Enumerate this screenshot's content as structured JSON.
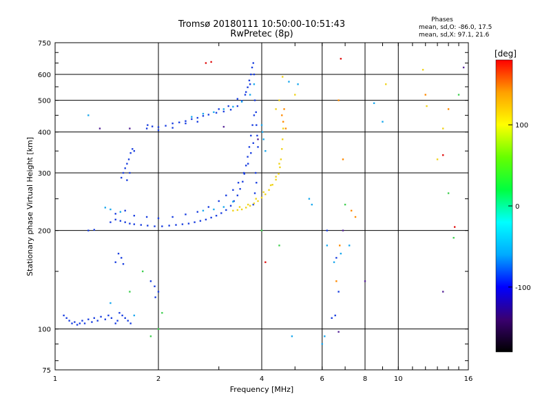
{
  "chart_data": {
    "type": "scatter",
    "title": "Tromsø 20180111 10:50:00-10:51:43",
    "subtitle": "RwPretec (8p)",
    "stats": {
      "heading": "Phases",
      "line1": "mean, sd,O: -86.0, 17.5",
      "line2": "mean, sd,X:  97.1, 21.6"
    },
    "xlabel": "Frequency [MHz]",
    "ylabel": "Stationary phase Virtual Height [km]",
    "xscale": "log",
    "yscale": "log",
    "xlim": [
      1,
      16
    ],
    "ylim": [
      75,
      750
    ],
    "x_ticks": [
      1,
      2,
      4,
      6,
      8,
      10,
      16
    ],
    "y_ticks": [
      75,
      100,
      200,
      300,
      400,
      500,
      600,
      750
    ],
    "x_grid": [
      2,
      4,
      6,
      8,
      10
    ],
    "y_grid": [
      100,
      200,
      300,
      400,
      500,
      600
    ],
    "grid": true,
    "colorbar": {
      "label": "[deg]",
      "range": [
        -180,
        180
      ],
      "ticks": [
        100,
        0,
        -100
      ],
      "colors": [
        "#000000",
        "#3a0070",
        "#0000ff",
        "#00aaff",
        "#00ffff",
        "#00ff40",
        "#66ff00",
        "#ffff00",
        "#ffa000",
        "#ff0000"
      ]
    },
    "series": [
      {
        "color": "#1a3fe0",
        "points": [
          [
            1.06,
            110
          ],
          [
            1.08,
            108
          ],
          [
            1.1,
            106
          ],
          [
            1.12,
            104
          ],
          [
            1.14,
            105
          ],
          [
            1.16,
            103
          ],
          [
            1.18,
            104
          ],
          [
            1.2,
            106
          ],
          [
            1.22,
            104
          ],
          [
            1.25,
            107
          ],
          [
            1.28,
            105
          ],
          [
            1.3,
            108
          ],
          [
            1.33,
            106
          ],
          [
            1.36,
            109
          ],
          [
            1.4,
            107
          ],
          [
            1.43,
            110
          ],
          [
            1.46,
            108
          ],
          [
            1.5,
            104
          ],
          [
            1.52,
            106
          ],
          [
            1.54,
            112
          ],
          [
            1.57,
            110
          ],
          [
            1.6,
            108
          ],
          [
            1.63,
            106
          ],
          [
            1.66,
            104
          ],
          [
            1.56,
            290
          ],
          [
            1.58,
            300
          ],
          [
            1.6,
            310
          ],
          [
            1.62,
            320
          ],
          [
            1.64,
            330
          ],
          [
            1.66,
            345
          ],
          [
            1.68,
            355
          ],
          [
            1.7,
            350
          ],
          [
            1.62,
            285
          ],
          [
            1.65,
            300
          ],
          [
            1.5,
            160
          ],
          [
            1.53,
            170
          ],
          [
            1.56,
            165
          ],
          [
            1.58,
            158
          ],
          [
            1.25,
            200
          ],
          [
            1.3,
            201
          ],
          [
            1.45,
            212
          ],
          [
            1.5,
            216
          ],
          [
            1.55,
            214
          ],
          [
            1.6,
            212
          ],
          [
            1.65,
            210
          ],
          [
            1.7,
            209
          ],
          [
            1.78,
            208
          ],
          [
            1.86,
            207
          ],
          [
            1.95,
            206
          ],
          [
            2.05,
            206
          ],
          [
            2.15,
            207
          ],
          [
            2.25,
            208
          ],
          [
            2.35,
            209
          ],
          [
            2.45,
            210
          ],
          [
            2.55,
            212
          ],
          [
            2.65,
            214
          ],
          [
            2.75,
            216
          ],
          [
            2.85,
            219
          ],
          [
            2.95,
            222
          ],
          [
            3.05,
            226
          ],
          [
            3.15,
            231
          ],
          [
            3.25,
            238
          ],
          [
            3.32,
            246
          ],
          [
            3.4,
            256
          ],
          [
            3.46,
            268
          ],
          [
            3.52,
            282
          ],
          [
            3.56,
            298
          ],
          [
            3.6,
            316
          ],
          [
            3.64,
            336
          ],
          [
            3.68,
            360
          ],
          [
            3.72,
            390
          ],
          [
            3.76,
            420
          ],
          [
            3.8,
            450
          ],
          [
            1.5,
            225
          ],
          [
            1.6,
            230
          ],
          [
            1.7,
            222
          ],
          [
            1.85,
            220
          ],
          [
            2.0,
            218
          ],
          [
            2.2,
            220
          ],
          [
            2.4,
            224
          ],
          [
            2.6,
            228
          ],
          [
            2.8,
            236
          ],
          [
            3.0,
            246
          ],
          [
            3.15,
            256
          ],
          [
            3.3,
            266
          ],
          [
            3.42,
            280
          ],
          [
            3.55,
            300
          ],
          [
            3.65,
            320
          ],
          [
            3.72,
            345
          ],
          [
            3.78,
            370
          ],
          [
            1.86,
            420
          ],
          [
            1.92,
            416
          ],
          [
            2.0,
            414
          ],
          [
            2.1,
            418
          ],
          [
            2.2,
            425
          ],
          [
            2.3,
            428
          ],
          [
            2.4,
            432
          ],
          [
            2.5,
            438
          ],
          [
            2.6,
            442
          ],
          [
            2.7,
            448
          ],
          [
            2.8,
            452
          ],
          [
            2.95,
            458
          ],
          [
            3.1,
            462
          ],
          [
            3.25,
            468
          ],
          [
            3.4,
            480
          ],
          [
            3.5,
            498
          ],
          [
            3.58,
            520
          ],
          [
            3.64,
            548
          ],
          [
            3.68,
            575
          ],
          [
            3.72,
            600
          ],
          [
            3.75,
            630
          ],
          [
            3.78,
            650
          ],
          [
            3.0,
            470
          ],
          [
            3.2,
            480
          ],
          [
            3.4,
            505
          ],
          [
            3.6,
            530
          ],
          [
            3.7,
            560
          ],
          [
            3.8,
            600
          ],
          [
            3.82,
            500
          ],
          [
            3.85,
            460
          ],
          [
            3.86,
            420
          ],
          [
            3.88,
            390
          ],
          [
            3.9,
            360
          ],
          [
            1.85,
            410
          ],
          [
            2.0,
            405
          ],
          [
            2.2,
            412
          ],
          [
            2.4,
            425
          ],
          [
            2.6,
            430
          ],
          [
            3.84,
            300
          ],
          [
            3.86,
            280
          ],
          [
            3.82,
            260
          ],
          [
            3.78,
            240
          ],
          [
            1.9,
            140
          ],
          [
            1.95,
            135
          ],
          [
            2.0,
            130
          ],
          [
            1.96,
            125
          ],
          [
            6.2,
            200
          ],
          [
            6.6,
            165
          ],
          [
            6.7,
            130
          ],
          [
            6.55,
            110
          ],
          [
            6.4,
            108
          ]
        ]
      },
      {
        "color": "#19a8ee",
        "points": [
          [
            2.5,
            445
          ],
          [
            2.7,
            455
          ],
          [
            2.9,
            460
          ],
          [
            3.1,
            470
          ],
          [
            3.3,
            478
          ],
          [
            3.5,
            495
          ],
          [
            3.7,
            520
          ],
          [
            3.8,
            560
          ],
          [
            1.4,
            235
          ],
          [
            1.45,
            232
          ],
          [
            1.55,
            228
          ],
          [
            2.7,
            230
          ],
          [
            2.9,
            232
          ],
          [
            3.1,
            236
          ],
          [
            3.3,
            245
          ],
          [
            4.0,
            420
          ],
          [
            4.05,
            380
          ],
          [
            4.1,
            350
          ],
          [
            4.02,
            400
          ],
          [
            1.25,
            450
          ],
          [
            1.45,
            120
          ],
          [
            1.7,
            110
          ],
          [
            6.0,
            90
          ],
          [
            6.1,
            95
          ],
          [
            6.2,
            180
          ],
          [
            6.5,
            160
          ],
          [
            6.8,
            170
          ],
          [
            7.2,
            180
          ],
          [
            8.5,
            490
          ],
          [
            9.0,
            430
          ],
          [
            4.8,
            570
          ],
          [
            5.1,
            560
          ],
          [
            5.5,
            250
          ],
          [
            5.6,
            240
          ],
          [
            4.9,
            95
          ]
        ]
      },
      {
        "color": "#f0d31a",
        "points": [
          [
            3.3,
            230
          ],
          [
            3.4,
            231
          ],
          [
            3.5,
            232
          ],
          [
            3.6,
            235
          ],
          [
            3.7,
            238
          ],
          [
            3.8,
            242
          ],
          [
            3.9,
            246
          ],
          [
            4.0,
            252
          ],
          [
            4.1,
            258
          ],
          [
            4.2,
            266
          ],
          [
            4.3,
            276
          ],
          [
            4.4,
            286
          ],
          [
            4.48,
            298
          ],
          [
            4.52,
            312
          ],
          [
            4.55,
            330
          ],
          [
            4.58,
            355
          ],
          [
            4.6,
            380
          ],
          [
            4.62,
            410
          ],
          [
            3.45,
            236
          ],
          [
            3.65,
            240
          ],
          [
            3.85,
            250
          ],
          [
            4.05,
            262
          ],
          [
            4.25,
            275
          ],
          [
            4.4,
            292
          ],
          [
            4.5,
            320
          ],
          [
            4.6,
            590
          ],
          [
            4.5,
            500
          ],
          [
            4.4,
            470
          ],
          [
            5.0,
            520
          ],
          [
            9.2,
            560
          ],
          [
            11.8,
            620
          ],
          [
            12.1,
            480
          ],
          [
            13.0,
            330
          ],
          [
            13.5,
            410
          ]
        ]
      },
      {
        "color": "#ff8a00",
        "points": [
          [
            4.58,
            450
          ],
          [
            4.62,
            430
          ],
          [
            4.65,
            470
          ],
          [
            4.7,
            410
          ],
          [
            6.7,
            500
          ],
          [
            6.9,
            330
          ],
          [
            6.75,
            180
          ],
          [
            6.6,
            140
          ],
          [
            7.3,
            230
          ],
          [
            7.5,
            220
          ],
          [
            12.0,
            520
          ],
          [
            14.0,
            470
          ]
        ]
      },
      {
        "color": "#e01010",
        "points": [
          [
            2.75,
            650
          ],
          [
            2.85,
            655
          ],
          [
            6.8,
            670
          ],
          [
            4.1,
            160
          ],
          [
            13.5,
            340
          ],
          [
            14.6,
            205
          ]
        ]
      },
      {
        "color": "#40d050",
        "points": [
          [
            1.9,
            95
          ],
          [
            2.0,
            100
          ],
          [
            1.65,
            130
          ],
          [
            2.05,
            112
          ],
          [
            1.8,
            150
          ],
          [
            4.0,
            200
          ],
          [
            4.5,
            180
          ],
          [
            7.0,
            240
          ],
          [
            14.0,
            260
          ],
          [
            14.5,
            190
          ],
          [
            15.0,
            520
          ]
        ]
      },
      {
        "color": "#5a2a9a",
        "points": [
          [
            1.35,
            410
          ],
          [
            1.65,
            410
          ],
          [
            3.1,
            415
          ],
          [
            3.9,
            380
          ],
          [
            13.5,
            130
          ],
          [
            15.5,
            630
          ],
          [
            6.9,
            200
          ],
          [
            8.0,
            140
          ],
          [
            6.7,
            98
          ]
        ]
      }
    ]
  }
}
